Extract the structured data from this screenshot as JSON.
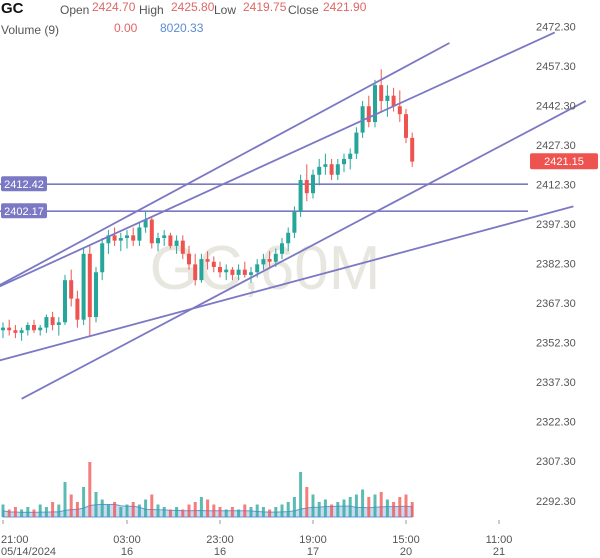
{
  "header": {
    "symbol": "GC",
    "open_label": "Open",
    "open_value": "2424.70",
    "high_label": "High",
    "high_value": "2425.80",
    "low_label": "Low",
    "low_value": "2419.75",
    "close_label": "Close",
    "close_value": "2421.90",
    "volume_label": "Volume (9)",
    "volume_value_1": "0.00",
    "volume_value_2": "8020.33"
  },
  "colors": {
    "up": "#26a69a",
    "down": "#ef5350",
    "trendline": "#7b78c4",
    "price_badge": "#ef5350",
    "level_badge": "#7b78c4",
    "volume_up": "#26a69a",
    "volume_down": "#ef5350",
    "volume_ma": "#5b8bd6"
  },
  "chart_data": {
    "type": "candlestick",
    "watermark": "GC,60M",
    "ylim": [
      2285,
      2477
    ],
    "y_ticks": [
      "2472.30",
      "2457.30",
      "2442.30",
      "2427.30",
      "2412.30",
      "2397.30",
      "2382.30",
      "2367.30",
      "2352.30",
      "2337.30",
      "2322.30",
      "2307.30",
      "2292.30"
    ],
    "x_ticks": [
      {
        "bar": 0,
        "time": "21:00",
        "date": "05/14/2024"
      },
      {
        "bar": 20,
        "time": "03:00",
        "date": "16"
      },
      {
        "bar": 35,
        "time": "23:00",
        "date": "16"
      },
      {
        "bar": 50,
        "time": "19:00",
        "date": "17"
      },
      {
        "bar": 65,
        "time": "15:00",
        "date": "20"
      },
      {
        "bar": 80,
        "time": "11:00",
        "date": "21"
      }
    ],
    "last_price_badge": "2421.15",
    "horizontal_levels": [
      {
        "label": "2412.42",
        "price": 2412.42
      },
      {
        "label": "2402.17",
        "price": 2402.17
      }
    ],
    "trendlines": [
      {
        "from": [
          -3,
          2371
        ],
        "to": [
          89,
          2470
        ]
      },
      {
        "from": [
          -3,
          2371
        ],
        "to": [
          72,
          2466
        ]
      },
      {
        "from": [
          3,
          2331
        ],
        "to": [
          94,
          2444
        ]
      },
      {
        "from": [
          -3,
          2344
        ],
        "to": [
          92,
          2404
        ]
      }
    ],
    "candles": [
      [
        2357,
        2360,
        2354,
        2358
      ],
      [
        2358,
        2361,
        2355,
        2357
      ],
      [
        2357,
        2359,
        2354,
        2356
      ],
      [
        2356,
        2358,
        2353,
        2357
      ],
      [
        2357,
        2360,
        2355,
        2359
      ],
      [
        2359,
        2361,
        2356,
        2357
      ],
      [
        2357,
        2359,
        2355,
        2358
      ],
      [
        2358,
        2363,
        2356,
        2362
      ],
      [
        2362,
        2364,
        2357,
        2359
      ],
      [
        2359,
        2362,
        2355,
        2360
      ],
      [
        2360,
        2378,
        2359,
        2376
      ],
      [
        2376,
        2380,
        2366,
        2369
      ],
      [
        2369,
        2372,
        2358,
        2361
      ],
      [
        2361,
        2388,
        2359,
        2386
      ],
      [
        2386,
        2389,
        2355,
        2362
      ],
      [
        2362,
        2381,
        2360,
        2379
      ],
      [
        2379,
        2392,
        2376,
        2390
      ],
      [
        2390,
        2395,
        2386,
        2393
      ],
      [
        2393,
        2396,
        2389,
        2391
      ],
      [
        2391,
        2394,
        2387,
        2392
      ],
      [
        2392,
        2395,
        2388,
        2393
      ],
      [
        2393,
        2396,
        2389,
        2391
      ],
      [
        2391,
        2398,
        2389,
        2396
      ],
      [
        2396,
        2402,
        2394,
        2399
      ],
      [
        2399,
        2400,
        2388,
        2390
      ],
      [
        2390,
        2394,
        2387,
        2392
      ],
      [
        2392,
        2395,
        2389,
        2393
      ],
      [
        2393,
        2394,
        2388,
        2389
      ],
      [
        2389,
        2393,
        2386,
        2391
      ],
      [
        2391,
        2393,
        2384,
        2386
      ],
      [
        2386,
        2389,
        2380,
        2382
      ],
      [
        2382,
        2386,
        2374,
        2376
      ],
      [
        2376,
        2386,
        2375,
        2384
      ],
      [
        2384,
        2387,
        2380,
        2383
      ],
      [
        2383,
        2385,
        2379,
        2381
      ],
      [
        2381,
        2383,
        2377,
        2379
      ],
      [
        2379,
        2382,
        2376,
        2380
      ],
      [
        2380,
        2381,
        2376,
        2378
      ],
      [
        2378,
        2382,
        2376,
        2380
      ],
      [
        2380,
        2383,
        2377,
        2378
      ],
      [
        2378,
        2381,
        2375,
        2379
      ],
      [
        2379,
        2384,
        2377,
        2382
      ],
      [
        2382,
        2386,
        2380,
        2384
      ],
      [
        2384,
        2387,
        2381,
        2383
      ],
      [
        2383,
        2388,
        2381,
        2386
      ],
      [
        2386,
        2392,
        2384,
        2390
      ],
      [
        2390,
        2396,
        2387,
        2394
      ],
      [
        2394,
        2404,
        2392,
        2402
      ],
      [
        2402,
        2416,
        2400,
        2414
      ],
      [
        2414,
        2420,
        2406,
        2409
      ],
      [
        2409,
        2418,
        2407,
        2416
      ],
      [
        2416,
        2422,
        2412,
        2419
      ],
      [
        2419,
        2424,
        2416,
        2420
      ],
      [
        2420,
        2422,
        2414,
        2416
      ],
      [
        2416,
        2422,
        2414,
        2420
      ],
      [
        2420,
        2424,
        2417,
        2422
      ],
      [
        2422,
        2426,
        2418,
        2424
      ],
      [
        2424,
        2434,
        2422,
        2432
      ],
      [
        2432,
        2444,
        2430,
        2442
      ],
      [
        2442,
        2446,
        2434,
        2436
      ],
      [
        2436,
        2452,
        2434,
        2450
      ],
      [
        2450,
        2456,
        2440,
        2444
      ],
      [
        2444,
        2450,
        2438,
        2446
      ],
      [
        2446,
        2449,
        2440,
        2442
      ],
      [
        2442,
        2448,
        2436,
        2439
      ],
      [
        2439,
        2441,
        2428,
        2430
      ],
      [
        2430,
        2432,
        2419,
        2421
      ]
    ],
    "volumes": [
      5,
      3,
      4,
      3,
      4,
      3,
      5,
      4,
      6,
      5,
      14,
      9,
      6,
      12,
      22,
      10,
      7,
      5,
      6,
      4,
      5,
      6,
      5,
      7,
      9,
      5,
      4,
      3,
      4,
      3,
      5,
      6,
      8,
      7,
      5,
      4,
      3,
      4,
      3,
      5,
      4,
      5,
      4,
      3,
      4,
      5,
      6,
      8,
      18,
      12,
      9,
      6,
      7,
      5,
      6,
      7,
      8,
      9,
      11,
      8,
      9,
      10,
      7,
      6,
      8,
      9,
      6
    ]
  }
}
